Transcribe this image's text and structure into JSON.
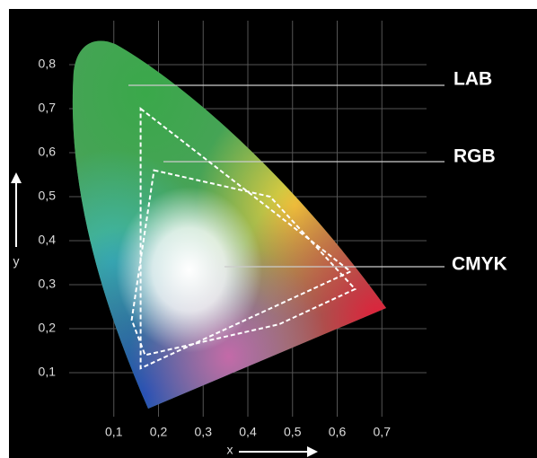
{
  "chart_data": {
    "type": "chromaticity",
    "x_label": "x",
    "y_label": "y",
    "annotation": "LAB",
    "xlim": [
      0,
      0.8
    ],
    "ylim": [
      0,
      0.9
    ],
    "xticks": [
      {
        "value": 0.1,
        "label": "0,1"
      },
      {
        "value": 0.2,
        "label": "0,2"
      },
      {
        "value": 0.3,
        "label": "0,3"
      },
      {
        "value": 0.4,
        "label": "0,4"
      },
      {
        "value": 0.5,
        "label": "0,5"
      },
      {
        "value": 0.6,
        "label": "0,6"
      },
      {
        "value": 0.7,
        "label": "0,7"
      }
    ],
    "yticks": [
      {
        "value": 0.1,
        "label": "0,1"
      },
      {
        "value": 0.2,
        "label": "0,2"
      },
      {
        "value": 0.3,
        "label": "0,3"
      },
      {
        "value": 0.4,
        "label": "0,4"
      },
      {
        "value": 0.5,
        "label": "0,5"
      },
      {
        "value": 0.6,
        "label": "0,6"
      },
      {
        "value": 0.7,
        "label": "0,7"
      },
      {
        "value": 0.8,
        "label": "0,8"
      }
    ],
    "grid": true,
    "series": [
      {
        "name": "RGB",
        "color": "#ffffff",
        "x": [
          0.16,
          0.63,
          0.16
        ],
        "values": [
          0.7,
          0.33,
          0.11
        ]
      },
      {
        "name": "CMYK",
        "color": "#ffffff",
        "x": [
          0.19,
          0.45,
          0.64,
          0.47,
          0.17,
          0.14
        ],
        "values": [
          0.56,
          0.5,
          0.29,
          0.21,
          0.14,
          0.22
        ]
      }
    ]
  }
}
